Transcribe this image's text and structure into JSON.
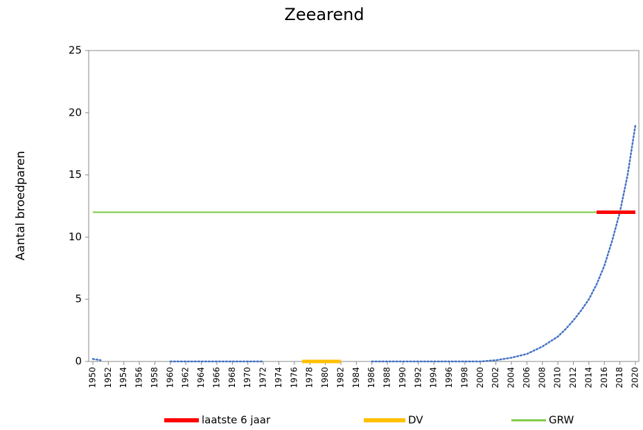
{
  "chart_data": {
    "type": "line",
    "title": "Zeearend",
    "y_label": "Aantal broedparen",
    "xlim": [
      1950,
      2020
    ],
    "ylim": [
      0,
      25
    ],
    "yticks": [
      0,
      5,
      10,
      15,
      20,
      25
    ],
    "xticks": [
      1950,
      1952,
      1954,
      1956,
      1958,
      1960,
      1962,
      1964,
      1966,
      1968,
      1970,
      1972,
      1974,
      1976,
      1978,
      1980,
      1982,
      1984,
      1986,
      1988,
      1990,
      1992,
      1994,
      1996,
      1998,
      2000,
      2002,
      2004,
      2006,
      2008,
      2010,
      2012,
      2014,
      2016,
      2018,
      2020
    ],
    "legend": "bottom",
    "grid": false,
    "series": [
      {
        "color": "#4472c4",
        "style": "dotted",
        "x": [
          1950,
          1951,
          1952,
          1960,
          1972,
          1980,
          1986,
          2000,
          2001,
          2002,
          2003,
          2004,
          2005,
          2006,
          2007,
          2008,
          2009,
          2010,
          2011,
          2012,
          2013,
          2014,
          2015,
          2016,
          2017,
          2018,
          2019,
          2020
        ],
        "values": [
          0.2,
          0.1,
          null,
          0,
          0,
          null,
          0,
          0,
          0.05,
          0.1,
          0.2,
          0.3,
          0.45,
          0.6,
          0.9,
          1.2,
          1.6,
          2.0,
          2.6,
          3.3,
          4.1,
          5.0,
          6.2,
          7.7,
          9.7,
          12,
          15,
          19
        ]
      },
      {
        "name": "laatste 6 jaar",
        "color": "#ff0000",
        "style": "solid",
        "x": [
          2015,
          2020
        ],
        "values": [
          12,
          12
        ]
      },
      {
        "name": "DV",
        "color": "#ffc000",
        "style": "solid",
        "x": [
          1977,
          1982
        ],
        "values": [
          0,
          0
        ]
      },
      {
        "name": "GRW",
        "color": "#7ac943",
        "style": "solid",
        "x": [
          1950,
          2020
        ],
        "values": [
          12,
          12
        ]
      }
    ]
  }
}
